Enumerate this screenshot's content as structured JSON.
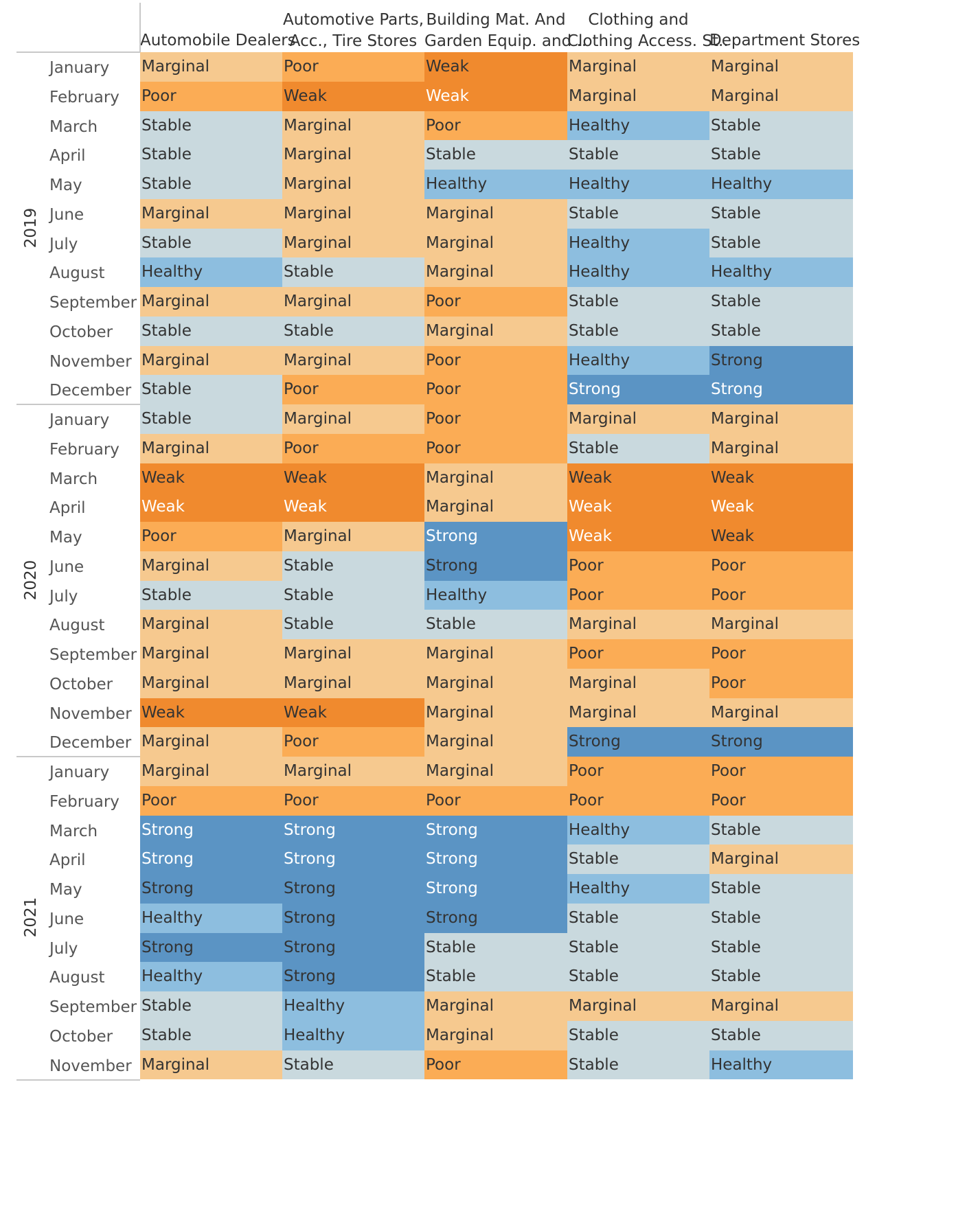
{
  "colors": {
    "Weak": "#F08A2E",
    "Poor": "#FBAC55",
    "Marginal": "#F6C98F",
    "Stable": "#C9D9DE",
    "Healthy": "#8DBEDF",
    "Strong": "#5B94C4"
  },
  "chart_data": {
    "type": "heatmap",
    "columns": [
      "Automobile Dealers",
      "Automotive Parts, Acc., Tire Stores",
      "Building Mat. And Garden Equip. and ..",
      "Clothing and Clothing Access. St..",
      "Department Stores"
    ],
    "column_header_lines": [
      [
        "Automobile Dealers"
      ],
      [
        "Automotive Parts,",
        "Acc., Tire Stores"
      ],
      [
        "Building Mat. And",
        "Garden Equip. and .."
      ],
      [
        "Clothing and",
        "Clothing Access. St.."
      ],
      [
        "Department Stores"
      ]
    ],
    "years": [
      {
        "year": "2019",
        "rows": [
          {
            "month": "January",
            "values": [
              "Marginal",
              "Poor",
              "Weak",
              "Marginal",
              "Marginal"
            ]
          },
          {
            "month": "February",
            "values": [
              "Poor",
              "Weak",
              "Weak",
              "Marginal",
              "Marginal"
            ]
          },
          {
            "month": "March",
            "values": [
              "Stable",
              "Marginal",
              "Poor",
              "Healthy",
              "Stable"
            ]
          },
          {
            "month": "April",
            "values": [
              "Stable",
              "Marginal",
              "Stable",
              "Stable",
              "Stable"
            ]
          },
          {
            "month": "May",
            "values": [
              "Stable",
              "Marginal",
              "Healthy",
              "Healthy",
              "Healthy"
            ]
          },
          {
            "month": "June",
            "values": [
              "Marginal",
              "Marginal",
              "Marginal",
              "Stable",
              "Stable"
            ]
          },
          {
            "month": "July",
            "values": [
              "Stable",
              "Marginal",
              "Marginal",
              "Healthy",
              "Stable"
            ]
          },
          {
            "month": "August",
            "values": [
              "Healthy",
              "Stable",
              "Marginal",
              "Healthy",
              "Healthy"
            ]
          },
          {
            "month": "September",
            "values": [
              "Marginal",
              "Marginal",
              "Poor",
              "Stable",
              "Stable"
            ]
          },
          {
            "month": "October",
            "values": [
              "Stable",
              "Stable",
              "Marginal",
              "Stable",
              "Stable"
            ]
          },
          {
            "month": "November",
            "values": [
              "Marginal",
              "Marginal",
              "Poor",
              "Healthy",
              "Strong"
            ]
          },
          {
            "month": "December",
            "values": [
              "Stable",
              "Poor",
              "Poor",
              "Strong",
              "Strong"
            ]
          }
        ]
      },
      {
        "year": "2020",
        "rows": [
          {
            "month": "January",
            "values": [
              "Stable",
              "Marginal",
              "Poor",
              "Marginal",
              "Marginal"
            ]
          },
          {
            "month": "February",
            "values": [
              "Marginal",
              "Poor",
              "Poor",
              "Stable",
              "Marginal"
            ]
          },
          {
            "month": "March",
            "values": [
              "Weak",
              "Weak",
              "Marginal",
              "Weak",
              "Weak"
            ]
          },
          {
            "month": "April",
            "values": [
              "Weak",
              "Weak",
              "Marginal",
              "Weak",
              "Weak"
            ]
          },
          {
            "month": "May",
            "values": [
              "Poor",
              "Marginal",
              "Strong",
              "Weak",
              "Weak"
            ]
          },
          {
            "month": "June",
            "values": [
              "Marginal",
              "Stable",
              "Strong",
              "Poor",
              "Poor"
            ]
          },
          {
            "month": "July",
            "values": [
              "Stable",
              "Stable",
              "Healthy",
              "Poor",
              "Poor"
            ]
          },
          {
            "month": "August",
            "values": [
              "Marginal",
              "Stable",
              "Stable",
              "Marginal",
              "Marginal"
            ]
          },
          {
            "month": "September",
            "values": [
              "Marginal",
              "Marginal",
              "Marginal",
              "Poor",
              "Poor"
            ]
          },
          {
            "month": "October",
            "values": [
              "Marginal",
              "Marginal",
              "Marginal",
              "Marginal",
              "Poor"
            ]
          },
          {
            "month": "November",
            "values": [
              "Weak",
              "Weak",
              "Marginal",
              "Marginal",
              "Marginal"
            ]
          },
          {
            "month": "December",
            "values": [
              "Marginal",
              "Poor",
              "Marginal",
              "Strong",
              "Strong"
            ]
          }
        ]
      },
      {
        "year": "2021",
        "rows": [
          {
            "month": "January",
            "values": [
              "Marginal",
              "Marginal",
              "Marginal",
              "Poor",
              "Poor"
            ]
          },
          {
            "month": "February",
            "values": [
              "Poor",
              "Poor",
              "Poor",
              "Poor",
              "Poor"
            ]
          },
          {
            "month": "March",
            "values": [
              "Strong",
              "Strong",
              "Strong",
              "Healthy",
              "Stable"
            ]
          },
          {
            "month": "April",
            "values": [
              "Strong",
              "Strong",
              "Strong",
              "Stable",
              "Marginal"
            ]
          },
          {
            "month": "May",
            "values": [
              "Strong",
              "Strong",
              "Strong",
              "Healthy",
              "Stable"
            ]
          },
          {
            "month": "June",
            "values": [
              "Healthy",
              "Strong",
              "Strong",
              "Stable",
              "Stable"
            ]
          },
          {
            "month": "July",
            "values": [
              "Strong",
              "Strong",
              "Stable",
              "Stable",
              "Stable"
            ]
          },
          {
            "month": "August",
            "values": [
              "Healthy",
              "Strong",
              "Stable",
              "Stable",
              "Stable"
            ]
          },
          {
            "month": "September",
            "values": [
              "Stable",
              "Healthy",
              "Marginal",
              "Marginal",
              "Marginal"
            ]
          },
          {
            "month": "October",
            "values": [
              "Stable",
              "Healthy",
              "Marginal",
              "Stable",
              "Stable"
            ]
          },
          {
            "month": "November",
            "values": [
              "Marginal",
              "Stable",
              "Poor",
              "Stable",
              "Healthy"
            ]
          }
        ]
      }
    ]
  }
}
